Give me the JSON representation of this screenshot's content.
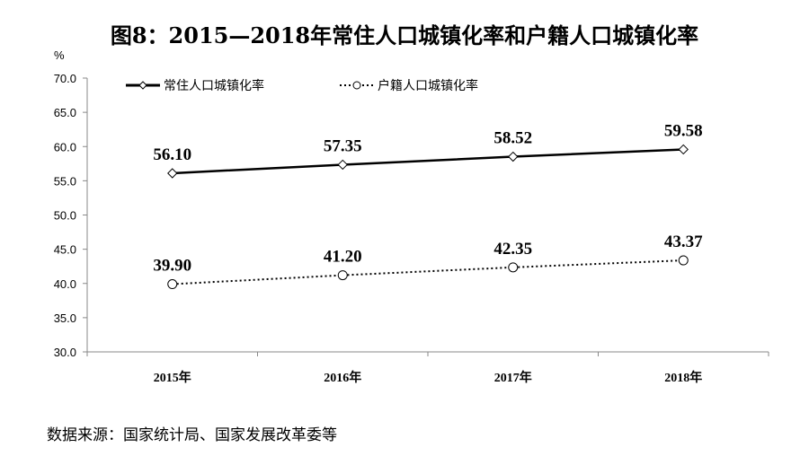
{
  "chart_data": {
    "type": "line",
    "title": "图8：2015—2018年常住人口城镇化率和户籍人口城镇化率",
    "ylabel": "%",
    "categories": [
      "2015年",
      "2016年",
      "2017年",
      "2018年"
    ],
    "yticks": [
      "30.0",
      "35.0",
      "40.0",
      "45.0",
      "50.0",
      "55.0",
      "60.0",
      "65.0",
      "70.0"
    ],
    "ylim": [
      30,
      70
    ],
    "grid": false,
    "legend_placement": "top-left",
    "series": [
      {
        "name": "常住人口城镇化率",
        "values": [
          56.1,
          57.35,
          58.52,
          59.58
        ],
        "labels": [
          "56.10",
          "57.35",
          "58.52",
          "59.58"
        ],
        "style": "solid",
        "marker": "diamond",
        "color": "#000000"
      },
      {
        "name": "户籍人口城镇化率",
        "values": [
          39.9,
          41.2,
          42.35,
          43.37
        ],
        "labels": [
          "39.90",
          "41.20",
          "42.35",
          "43.37"
        ],
        "style": "dotted",
        "marker": "circle",
        "color": "#000000"
      }
    ],
    "source": "数据来源：国家统计局、国家发展改革委等"
  }
}
